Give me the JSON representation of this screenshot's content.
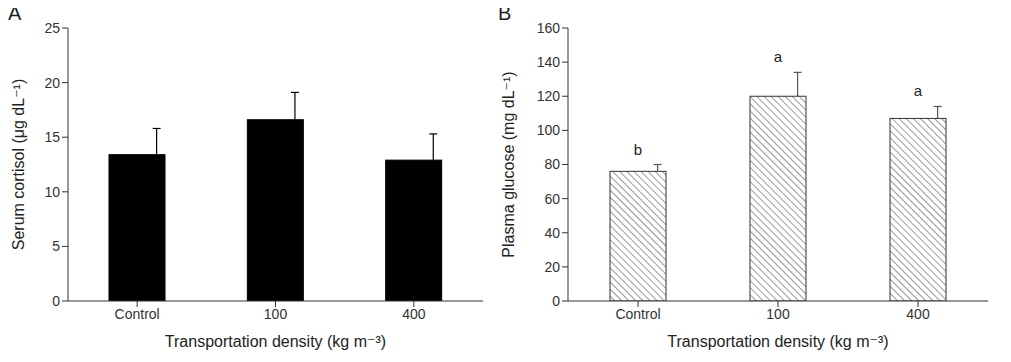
{
  "chart_data": [
    {
      "type": "bar",
      "title": "A",
      "categories": [
        "Control",
        "100",
        "400"
      ],
      "values": [
        13.4,
        16.6,
        12.9
      ],
      "errors": [
        2.4,
        2.5,
        2.4
      ],
      "color": "#000000",
      "ylim": [
        0,
        25
      ],
      "yticks": [
        0,
        5,
        10,
        15,
        20,
        25
      ],
      "ylabel": "Serum cortisol (μg dL⁻¹)",
      "xlabel": "Transportation density (kg m⁻³)",
      "grid": false
    },
    {
      "type": "bar",
      "title": "B",
      "categories": [
        "Control",
        "100",
        "400"
      ],
      "values": [
        76,
        120,
        107
      ],
      "errors": [
        4,
        14,
        7
      ],
      "annotations": [
        "b",
        "a",
        "a"
      ],
      "color": "#555555",
      "ylim": [
        0,
        160
      ],
      "yticks": [
        0,
        20,
        40,
        60,
        80,
        100,
        120,
        140,
        160
      ],
      "ylabel": "Plasma glucose (mg dL⁻¹)",
      "xlabel": "Transportation density (kg m⁻³)",
      "grid": false
    }
  ]
}
